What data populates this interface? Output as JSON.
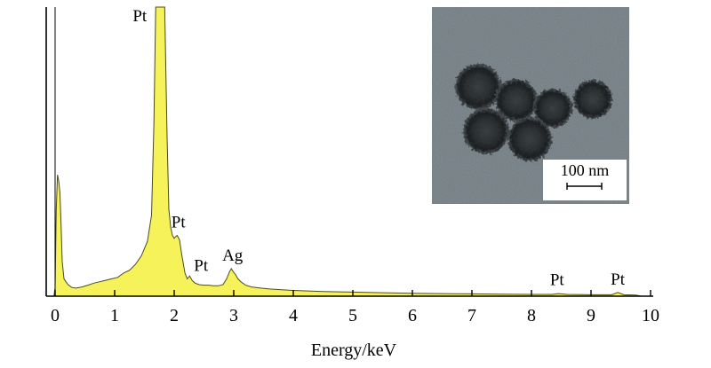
{
  "chart_data": {
    "type": "area",
    "xlabel": "Energy/keV",
    "ylabel": "",
    "xlim": [
      -0.1,
      10.05
    ],
    "ylim": [
      0,
      100
    ],
    "x_ticks": [
      0,
      1,
      2,
      3,
      4,
      5,
      6,
      7,
      8,
      9,
      10
    ],
    "grid": false,
    "legend": "none",
    "fill_color": "#f6f25a",
    "line_color": "#4a4a20",
    "spectrum": {
      "x": [
        -0.02,
        0.0,
        0.02,
        0.04,
        0.06,
        0.08,
        0.1,
        0.12,
        0.15,
        0.18,
        0.22,
        0.28,
        0.35,
        0.45,
        0.55,
        0.65,
        0.75,
        0.85,
        0.95,
        1.05,
        1.15,
        1.25,
        1.35,
        1.45,
        1.55,
        1.62,
        1.66,
        1.69,
        1.72,
        1.78,
        1.84,
        1.88,
        1.91,
        1.94,
        1.97,
        2.0,
        2.02,
        2.05,
        2.09,
        2.13,
        2.18,
        2.22,
        2.26,
        2.3,
        2.35,
        2.42,
        2.5,
        2.58,
        2.66,
        2.74,
        2.82,
        2.88,
        2.93,
        2.96,
        2.99,
        3.03,
        3.07,
        3.12,
        3.2,
        3.3,
        3.45,
        3.6,
        3.8,
        4.0,
        4.5,
        5.0,
        5.5,
        6.0,
        6.5,
        7.0,
        7.5,
        8.0,
        8.35,
        8.45,
        8.6,
        9.0,
        9.35,
        9.45,
        9.55,
        9.75,
        9.85
      ],
      "y": [
        0,
        3,
        30,
        42,
        40,
        36,
        25,
        12,
        6,
        5,
        4,
        3,
        2.8,
        3.2,
        3.8,
        4.5,
        5,
        5.5,
        6,
        6.5,
        8,
        9,
        11,
        14,
        19,
        28,
        60,
        100,
        100,
        100,
        100,
        55,
        30,
        24,
        21,
        20,
        20.5,
        21,
        19.5,
        14,
        8,
        6,
        7,
        5.5,
        4.5,
        4,
        3.8,
        3.8,
        3.6,
        3.6,
        4,
        6,
        8.5,
        9.5,
        8.5,
        7.5,
        6,
        5,
        3.8,
        3.2,
        2.8,
        2.5,
        2.2,
        2,
        1.6,
        1.4,
        1.2,
        1.0,
        0.9,
        0.8,
        0.7,
        0.6,
        0.6,
        0.9,
        0.6,
        0.5,
        0.5,
        1.3,
        0.5,
        0.4,
        0
      ]
    },
    "annotations": [
      {
        "text": "Pt",
        "x": 1.78,
        "y": 100
      },
      {
        "text": "Pt",
        "x": 2.07,
        "y": 21
      },
      {
        "text": "Pt",
        "x": 2.45,
        "y": 6
      },
      {
        "text": "Ag",
        "x": 2.98,
        "y": 9.5
      },
      {
        "text": "Pt",
        "x": 8.43,
        "y": 1
      },
      {
        "text": "Pt",
        "x": 9.45,
        "y": 1.3
      }
    ]
  },
  "inset": {
    "scale_label": "100 nm",
    "background_color": "#6f7a80"
  }
}
